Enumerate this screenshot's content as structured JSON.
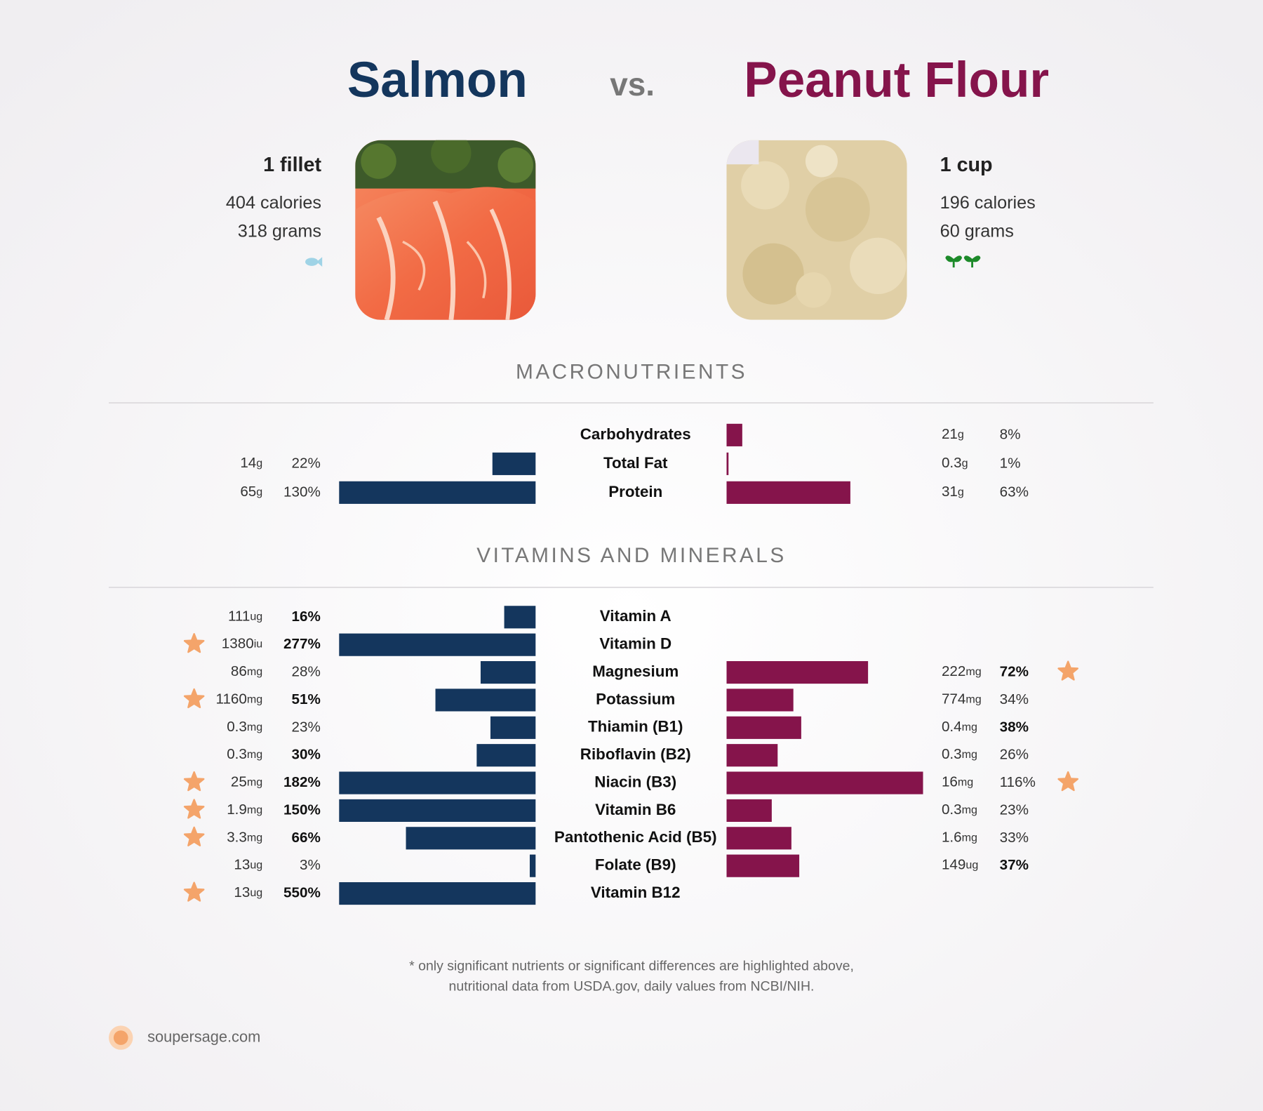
{
  "title": {
    "left": "Salmon",
    "vs": "vs.",
    "right": "Peanut Flour"
  },
  "foods": {
    "salmon": {
      "serving": "1 fillet",
      "calories": "404 calories",
      "grams": "318 grams",
      "color": "#14365d"
    },
    "peanut": {
      "serving": "1 cup",
      "calories": "196 calories",
      "grams": "60 grams",
      "color": "#85144b"
    }
  },
  "xlim": [
    0,
    100
  ],
  "star_color": "#f4a46a",
  "sections": [
    {
      "heading": "MACRONUTRIENTS",
      "rows": [
        {
          "nutrient": "Carbohydrates",
          "salmon": null,
          "peanut": {
            "amount": 21,
            "unit": "g",
            "pct": 8,
            "pct_label": "8%",
            "bold": false,
            "star": false
          }
        },
        {
          "nutrient": "Total Fat",
          "salmon": {
            "amount": 14,
            "unit": "g",
            "pct": 22,
            "pct_label": "22%",
            "bold": false,
            "star": false
          },
          "peanut": {
            "amount": 0.3,
            "unit": "g",
            "pct": 1,
            "pct_label": "1%",
            "bold": false,
            "star": false
          }
        },
        {
          "nutrient": "Protein",
          "salmon": {
            "amount": 65,
            "unit": "g",
            "pct": 130,
            "pct_label": "130%",
            "bold": false,
            "star": false
          },
          "peanut": {
            "amount": 31,
            "unit": "g",
            "pct": 63,
            "pct_label": "63%",
            "bold": false,
            "star": false
          }
        }
      ]
    },
    {
      "heading": "VITAMINS AND MINERALS",
      "rows": [
        {
          "nutrient": "Vitamin A",
          "salmon": {
            "amount": 111,
            "unit": "ug",
            "pct": 16,
            "pct_label": "16%",
            "bold": true,
            "star": false
          },
          "peanut": null
        },
        {
          "nutrient": "Vitamin D",
          "salmon": {
            "amount": 1380,
            "unit": "iu",
            "pct": 277,
            "pct_label": "277%",
            "bold": true,
            "star": true
          },
          "peanut": null
        },
        {
          "nutrient": "Magnesium",
          "salmon": {
            "amount": 86,
            "unit": "mg",
            "pct": 28,
            "pct_label": "28%",
            "bold": false,
            "star": false
          },
          "peanut": {
            "amount": 222,
            "unit": "mg",
            "pct": 72,
            "pct_label": "72%",
            "bold": true,
            "star": true
          }
        },
        {
          "nutrient": "Potassium",
          "salmon": {
            "amount": 1160,
            "unit": "mg",
            "pct": 51,
            "pct_label": "51%",
            "bold": true,
            "star": true
          },
          "peanut": {
            "amount": 774,
            "unit": "mg",
            "pct": 34,
            "pct_label": "34%",
            "bold": false,
            "star": false
          }
        },
        {
          "nutrient": "Thiamin (B1)",
          "salmon": {
            "amount": 0.3,
            "unit": "mg",
            "pct": 23,
            "pct_label": "23%",
            "bold": false,
            "star": false
          },
          "peanut": {
            "amount": 0.4,
            "unit": "mg",
            "pct": 38,
            "pct_label": "38%",
            "bold": true,
            "star": false
          }
        },
        {
          "nutrient": "Riboflavin (B2)",
          "salmon": {
            "amount": 0.3,
            "unit": "mg",
            "pct": 30,
            "pct_label": "30%",
            "bold": true,
            "star": false
          },
          "peanut": {
            "amount": 0.3,
            "unit": "mg",
            "pct": 26,
            "pct_label": "26%",
            "bold": false,
            "star": false
          }
        },
        {
          "nutrient": "Niacin (B3)",
          "salmon": {
            "amount": 25,
            "unit": "mg",
            "pct": 182,
            "pct_label": "182%",
            "bold": true,
            "star": true
          },
          "peanut": {
            "amount": 16,
            "unit": "mg",
            "pct": 116,
            "pct_label": "116%",
            "bold": false,
            "star": true
          }
        },
        {
          "nutrient": "Vitamin B6",
          "salmon": {
            "amount": 1.9,
            "unit": "mg",
            "pct": 150,
            "pct_label": "150%",
            "bold": true,
            "star": true
          },
          "peanut": {
            "amount": 0.3,
            "unit": "mg",
            "pct": 23,
            "pct_label": "23%",
            "bold": false,
            "star": false
          }
        },
        {
          "nutrient": "Pantothenic Acid (B5)",
          "salmon": {
            "amount": 3.3,
            "unit": "mg",
            "pct": 66,
            "pct_label": "66%",
            "bold": true,
            "star": true
          },
          "peanut": {
            "amount": 1.6,
            "unit": "mg",
            "pct": 33,
            "pct_label": "33%",
            "bold": false,
            "star": false
          }
        },
        {
          "nutrient": "Folate (B9)",
          "salmon": {
            "amount": 13,
            "unit": "ug",
            "pct": 3,
            "pct_label": "3%",
            "bold": false,
            "star": false
          },
          "peanut": {
            "amount": 149,
            "unit": "ug",
            "pct": 37,
            "pct_label": "37%",
            "bold": true,
            "star": false
          }
        },
        {
          "nutrient": "Vitamin B12",
          "salmon": {
            "amount": 13,
            "unit": "ug",
            "pct": 550,
            "pct_label": "550%",
            "bold": true,
            "star": true
          },
          "peanut": null
        }
      ]
    }
  ],
  "footnote": [
    "* only significant nutrients or significant differences are highlighted above,",
    "nutritional data from USDA.gov, daily values from NCBI/NIH."
  ],
  "brand": "soupersage.com"
}
